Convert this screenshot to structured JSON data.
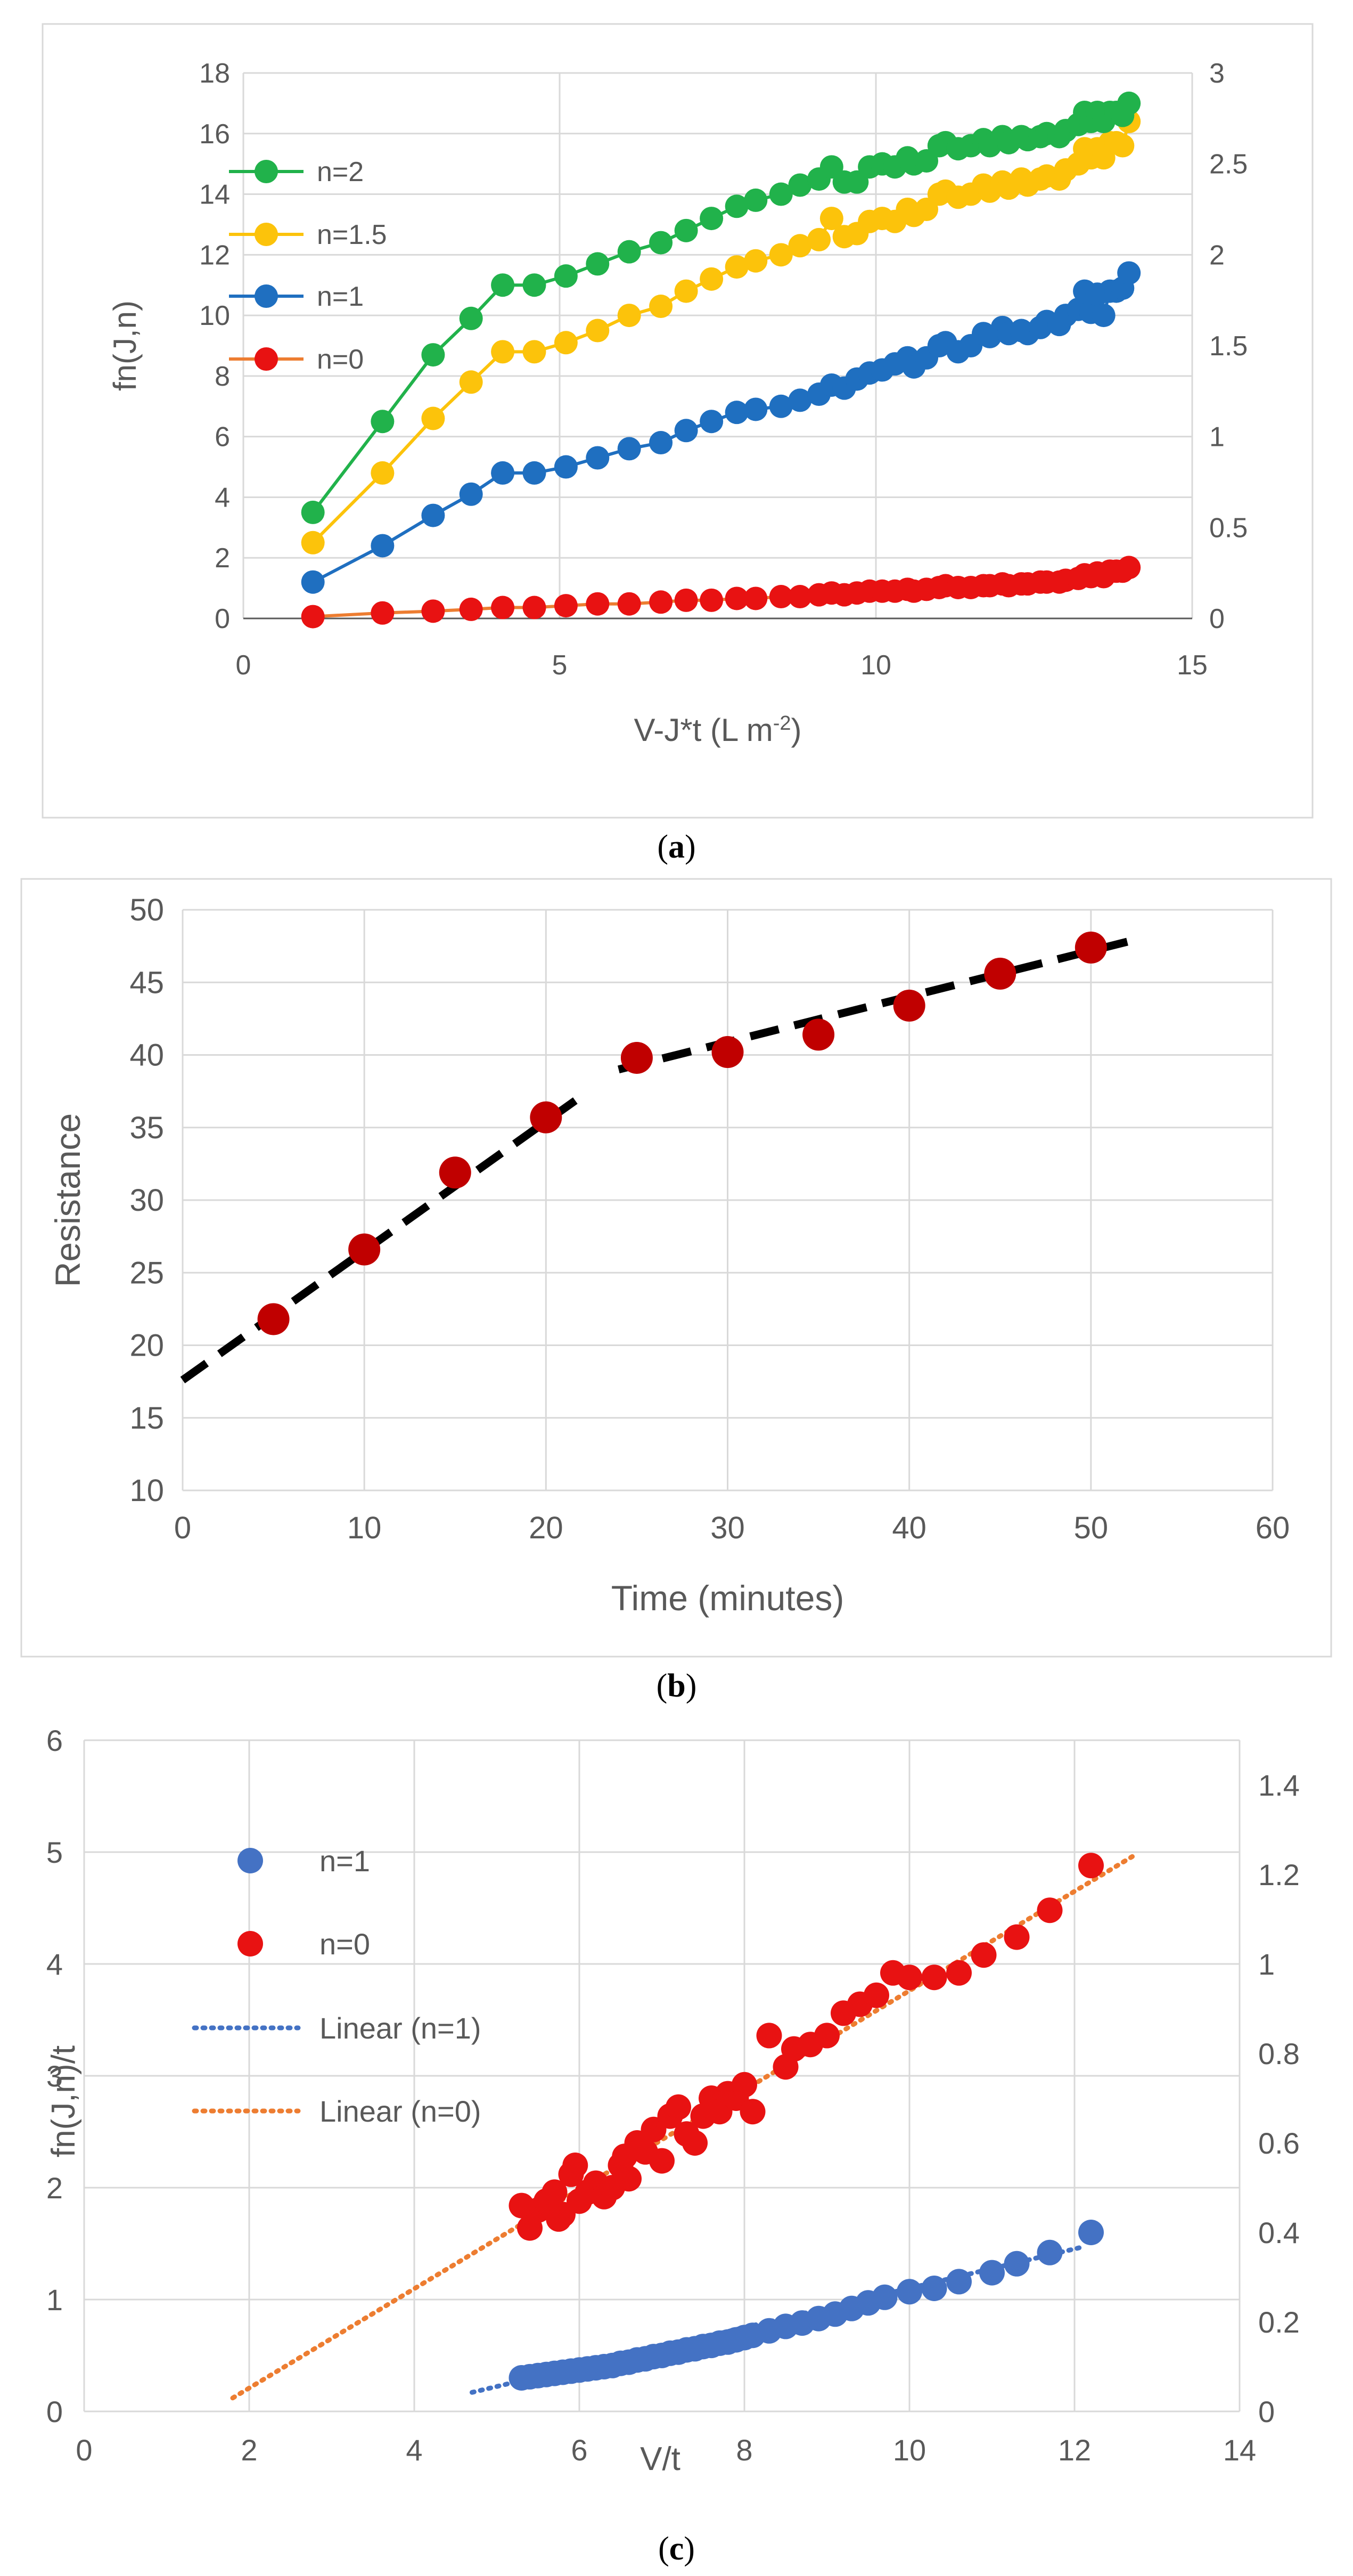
{
  "captions": {
    "a": "(a)",
    "b": "(b)",
    "c": "(c)"
  },
  "letters": {
    "a": "a",
    "b": "b",
    "c": "c"
  },
  "colors": {
    "green": "#21b24b",
    "yellow": "#fcc30b",
    "blue": "#1f6fc0",
    "red": "#e81212",
    "orange": "#ed7d31",
    "grid": "#d9d9d9",
    "axis": "#595959",
    "text": "#595959",
    "darkred": "#c00000",
    "steelblue": "#4472c4"
  },
  "chart_data": [
    {
      "id": "a",
      "type": "line",
      "xlabel": "V-J*t (L m-2)",
      "xlabel_main": "V-J*t (L m",
      "xlabel_sup": "-2",
      "xlabel_tail": ")",
      "ylabel": "fn(J,n)",
      "xlim": [
        0,
        15
      ],
      "ylim": [
        0,
        18
      ],
      "y2lim": [
        0,
        3
      ],
      "xticks": [
        0,
        5,
        10,
        15
      ],
      "yticks": [
        0,
        2,
        4,
        6,
        8,
        10,
        12,
        14,
        16,
        18
      ],
      "y2ticks": [
        "0",
        "0.5",
        "1",
        "1.5",
        "2",
        "2.5",
        "3"
      ],
      "legend": [
        "n=2",
        "n=1.5",
        "n=1",
        "n=0"
      ],
      "x": [
        1.1,
        2.2,
        3.0,
        3.6,
        4.1,
        4.6,
        5.1,
        5.6,
        6.1,
        6.6,
        7.0,
        7.4,
        7.8,
        8.1,
        8.5,
        8.8,
        9.1,
        9.3,
        9.5,
        9.7,
        9.9,
        10.1,
        10.3,
        10.5,
        10.6,
        10.8,
        11.0,
        11.1,
        11.3,
        11.5,
        11.7,
        11.8,
        12.0,
        12.1,
        12.3,
        12.4,
        12.6,
        12.7,
        12.9,
        13.0,
        13.2,
        13.3,
        13.4,
        13.5,
        13.6,
        13.7,
        13.8,
        13.9,
        14.0
      ],
      "series": [
        {
          "name": "n=2",
          "axis": "left",
          "color": "#21b24b",
          "values": [
            3.5,
            6.5,
            8.7,
            9.9,
            11.0,
            11.0,
            11.3,
            11.7,
            12.1,
            12.4,
            12.8,
            13.2,
            13.6,
            13.8,
            14.0,
            14.3,
            14.5,
            14.9,
            14.4,
            14.4,
            14.9,
            15.0,
            14.9,
            15.2,
            15.0,
            15.1,
            15.6,
            15.7,
            15.5,
            15.6,
            15.8,
            15.6,
            15.9,
            15.7,
            15.9,
            15.8,
            15.9,
            16.0,
            15.9,
            16.1,
            16.3,
            16.7,
            16.4,
            16.7,
            16.4,
            16.7,
            16.7,
            16.6,
            17.0
          ]
        },
        {
          "name": "n=1.5",
          "axis": "left",
          "color": "#fcc30b",
          "values": [
            2.5,
            4.8,
            6.6,
            7.8,
            8.8,
            8.8,
            9.1,
            9.5,
            10.0,
            10.3,
            10.8,
            11.2,
            11.6,
            11.8,
            12.0,
            12.3,
            12.5,
            13.2,
            12.6,
            12.7,
            13.1,
            13.2,
            13.1,
            13.5,
            13.3,
            13.5,
            14.0,
            14.1,
            13.9,
            14.0,
            14.3,
            14.1,
            14.4,
            14.2,
            14.5,
            14.3,
            14.5,
            14.6,
            14.5,
            14.8,
            15.0,
            15.5,
            15.2,
            15.5,
            15.2,
            15.7,
            15.7,
            15.6,
            16.4
          ]
        },
        {
          "name": "n=1",
          "axis": "left",
          "color": "#1f6fc0",
          "values": [
            1.2,
            2.4,
            3.4,
            4.1,
            4.8,
            4.8,
            5.0,
            5.3,
            5.6,
            5.8,
            6.2,
            6.5,
            6.8,
            6.9,
            7.0,
            7.2,
            7.4,
            7.7,
            7.6,
            7.9,
            8.1,
            8.2,
            8.4,
            8.6,
            8.3,
            8.6,
            9.0,
            9.1,
            8.8,
            9.0,
            9.4,
            9.3,
            9.6,
            9.4,
            9.5,
            9.4,
            9.6,
            9.8,
            9.7,
            10.0,
            10.2,
            10.8,
            10.1,
            10.7,
            10.0,
            10.8,
            10.8,
            10.9,
            11.4
          ]
        },
        {
          "name": "n=0",
          "axis": "right",
          "color": "#e81212",
          "values": [
            0.01,
            0.03,
            0.04,
            0.05,
            0.06,
            0.06,
            0.07,
            0.08,
            0.08,
            0.09,
            0.1,
            0.1,
            0.11,
            0.11,
            0.12,
            0.12,
            0.13,
            0.14,
            0.13,
            0.14,
            0.15,
            0.15,
            0.15,
            0.16,
            0.15,
            0.16,
            0.17,
            0.18,
            0.17,
            0.17,
            0.18,
            0.18,
            0.19,
            0.18,
            0.19,
            0.19,
            0.2,
            0.2,
            0.2,
            0.21,
            0.22,
            0.24,
            0.23,
            0.25,
            0.23,
            0.26,
            0.26,
            0.26,
            0.28
          ]
        }
      ]
    },
    {
      "id": "b",
      "type": "scatter",
      "xlabel": "Time (minutes)",
      "ylabel": "Resistance",
      "xlim": [
        0,
        60
      ],
      "ylim": [
        10,
        50
      ],
      "xticks": [
        0,
        10,
        20,
        30,
        40,
        50,
        60
      ],
      "yticks": [
        10,
        15,
        20,
        25,
        30,
        35,
        40,
        45,
        50
      ],
      "points": {
        "x": [
          5,
          10,
          15,
          20,
          25,
          30,
          35,
          40,
          45,
          50
        ],
        "y": [
          21.8,
          26.6,
          31.9,
          35.7,
          39.8,
          40.2,
          41.4,
          43.4,
          45.6,
          47.4
        ]
      },
      "trendlines": [
        {
          "name": "segment-1",
          "x": [
            0,
            22
          ],
          "y": [
            17.6,
            37.2
          ]
        },
        {
          "name": "segment-2",
          "x": [
            24,
            52
          ],
          "y": [
            39.0,
            47.8
          ]
        }
      ]
    },
    {
      "id": "c",
      "type": "scatter",
      "xlabel": "V/t",
      "ylabel": "fn(J,n)/t",
      "xlim": [
        0,
        14
      ],
      "ylim": [
        0,
        6
      ],
      "y2lim": [
        0,
        1.5
      ],
      "xticks": [
        0,
        2,
        4,
        6,
        8,
        10,
        12,
        14
      ],
      "yticks": [
        0,
        1,
        2,
        3,
        4,
        5,
        6
      ],
      "y2ticks": [
        "0",
        "0.2",
        "0.4",
        "0.6",
        "0.8",
        "1",
        "1.2",
        "1.4"
      ],
      "legend": [
        "n=1",
        "n=0",
        "Linear (n=1)",
        "Linear (n=0)"
      ],
      "series": [
        {
          "name": "n=1",
          "axis": "left",
          "color": "#4472c4",
          "x": [
            5.3,
            5.4,
            5.5,
            5.6,
            5.7,
            5.8,
            5.9,
            6.0,
            6.1,
            6.2,
            6.3,
            6.4,
            6.5,
            6.6,
            6.7,
            6.8,
            6.9,
            7.0,
            7.1,
            7.2,
            7.3,
            7.4,
            7.5,
            7.6,
            7.7,
            7.8,
            7.9,
            8.0,
            8.1,
            8.3,
            8.5,
            8.7,
            8.9,
            9.1,
            9.3,
            9.5,
            9.7,
            10.0,
            10.3,
            10.6,
            11.0,
            11.3,
            11.7,
            12.2
          ],
          "y": [
            0.3,
            0.31,
            0.32,
            0.33,
            0.34,
            0.35,
            0.36,
            0.37,
            0.38,
            0.39,
            0.4,
            0.41,
            0.43,
            0.44,
            0.46,
            0.47,
            0.49,
            0.5,
            0.52,
            0.53,
            0.55,
            0.56,
            0.58,
            0.59,
            0.61,
            0.62,
            0.64,
            0.66,
            0.68,
            0.72,
            0.76,
            0.79,
            0.83,
            0.87,
            0.92,
            0.97,
            1.02,
            1.07,
            1.1,
            1.16,
            1.24,
            1.32,
            1.42,
            1.6
          ]
        },
        {
          "name": "n=0",
          "axis": "right",
          "color": "#e81212",
          "x": [
            5.3,
            5.4,
            5.5,
            5.6,
            5.7,
            5.75,
            5.8,
            5.9,
            5.95,
            6.0,
            6.1,
            6.2,
            6.3,
            6.4,
            6.5,
            6.55,
            6.6,
            6.7,
            6.8,
            6.9,
            7.0,
            7.1,
            7.2,
            7.3,
            7.4,
            7.5,
            7.6,
            7.7,
            7.8,
            7.9,
            8.0,
            8.1,
            8.3,
            8.5,
            8.6,
            8.8,
            9.0,
            9.2,
            9.4,
            9.6,
            9.8,
            10.0,
            10.3,
            10.6,
            10.9,
            11.3,
            11.7,
            12.2
          ],
          "y": [
            0.46,
            0.41,
            0.45,
            0.47,
            0.49,
            0.43,
            0.44,
            0.53,
            0.55,
            0.47,
            0.49,
            0.51,
            0.48,
            0.5,
            0.55,
            0.57,
            0.52,
            0.6,
            0.58,
            0.63,
            0.56,
            0.66,
            0.68,
            0.62,
            0.6,
            0.66,
            0.7,
            0.67,
            0.71,
            0.7,
            0.73,
            0.67,
            0.84,
            0.77,
            0.81,
            0.82,
            0.84,
            0.89,
            0.91,
            0.93,
            0.98,
            0.97,
            0.97,
            0.98,
            1.02,
            1.06,
            1.12,
            1.22
          ]
        }
      ],
      "trendlines": [
        {
          "name": "Linear (n=1)",
          "axis": "left",
          "color": "#4472c4",
          "x": [
            4.7,
            12.1
          ],
          "y": [
            0.17,
            1.47
          ]
        },
        {
          "name": "Linear (n=0)",
          "axis": "right",
          "color": "#ed7d31",
          "x": [
            1.8,
            12.7
          ],
          "y": [
            0.03,
            1.24
          ]
        }
      ]
    }
  ]
}
